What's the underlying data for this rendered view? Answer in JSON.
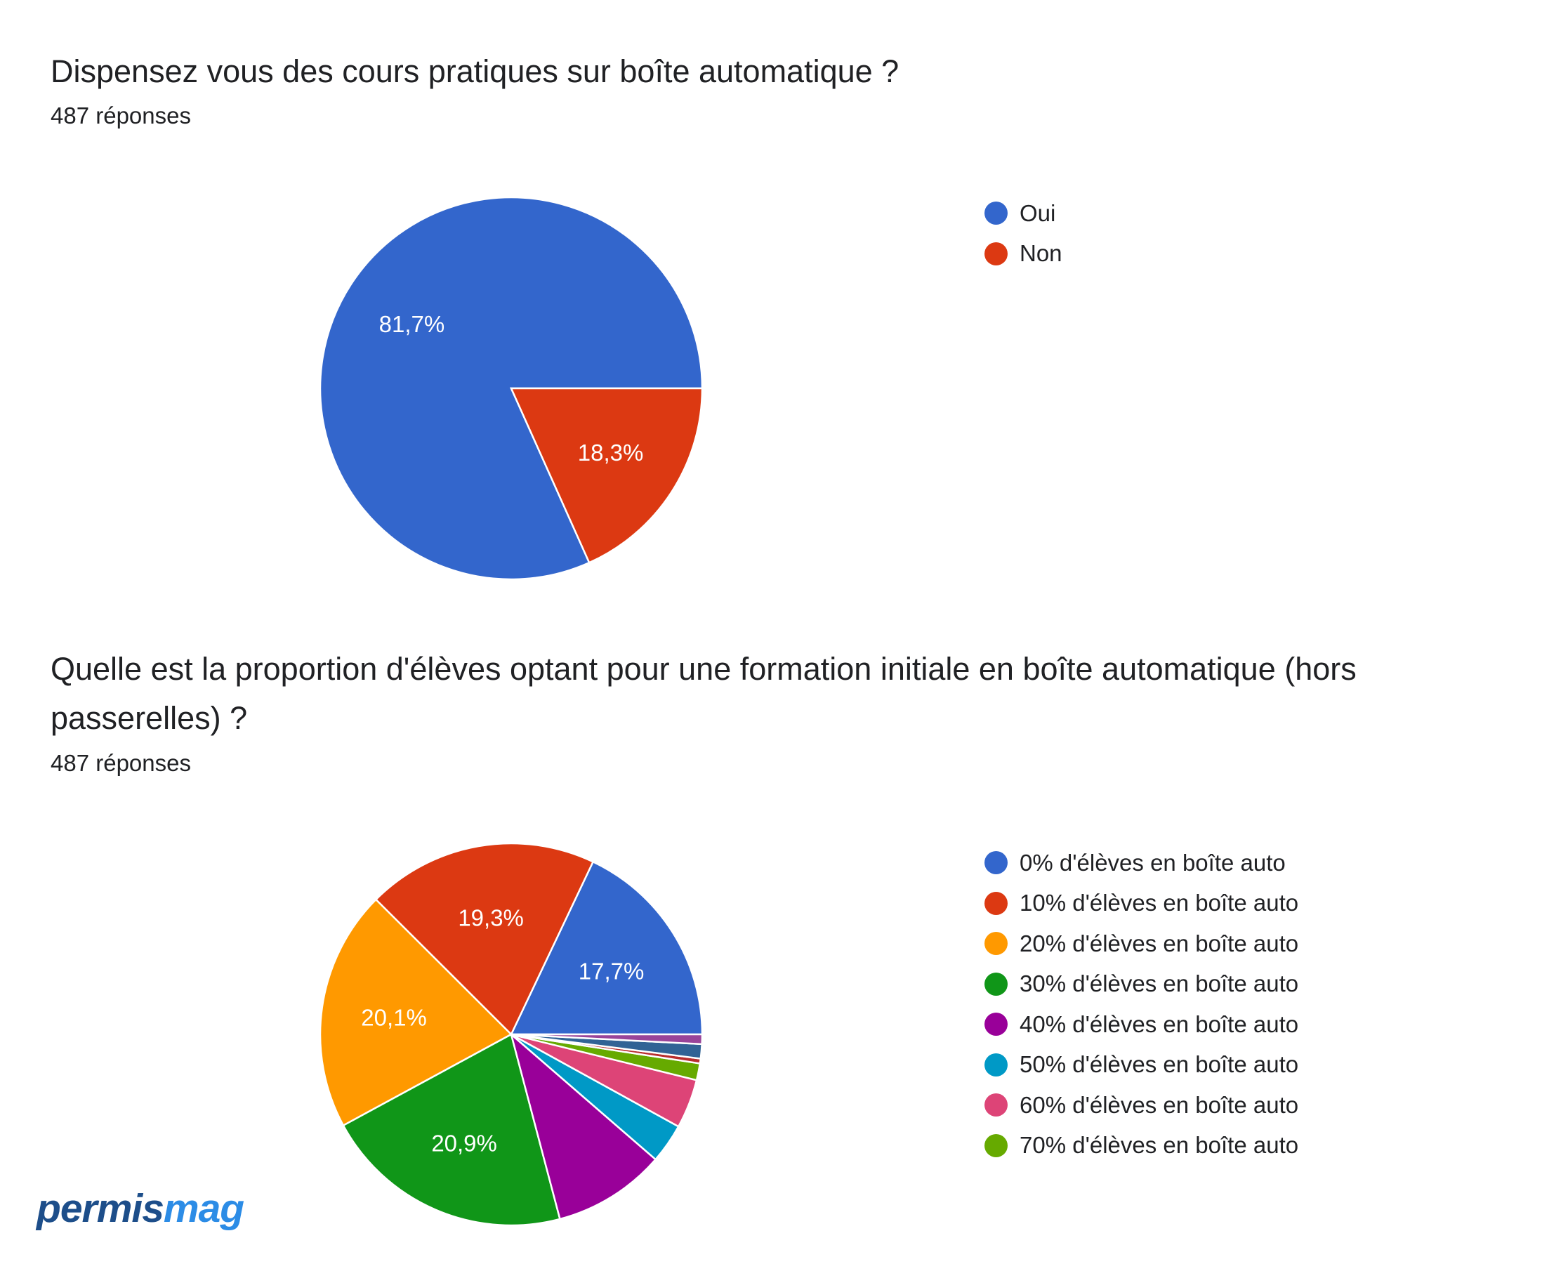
{
  "chart_data": [
    {
      "type": "pie",
      "title": "Dispensez vous des cours pratiques sur boîte automatique ?",
      "subtitle": "487 réponses",
      "categories": [
        "Oui",
        "Non"
      ],
      "values": [
        81.7,
        18.3
      ],
      "labels": [
        "81,7%",
        "18,3%"
      ],
      "colors": [
        "#3366cc",
        "#dc3912"
      ],
      "legend_position": "right"
    },
    {
      "type": "pie",
      "title": "Quelle est la proportion d'élèves optant pour une formation initiale en boîte automatique (hors passerelles) ?",
      "subtitle": "487 réponses",
      "categories": [
        "0% d'élèves en boîte auto",
        "10% d'élèves en boîte auto",
        "20% d'élèves en boîte auto",
        "30% d'élèves en boîte auto",
        "40% d'élèves en boîte auto",
        "50% d'élèves en boîte auto",
        "60% d'élèves en boîte auto",
        "70% d'élèves en boîte auto",
        "",
        "",
        ""
      ],
      "values": [
        17.7,
        19.3,
        20.1,
        20.9,
        9.4,
        3.3,
        4.1,
        1.4,
        0.4,
        1.2,
        0.8
      ],
      "labels": [
        "17,7%",
        "19,3%",
        "20,1%",
        "20,9%",
        "",
        "",
        "",
        "",
        "",
        "",
        ""
      ],
      "colors": [
        "#3366cc",
        "#dc3912",
        "#ff9900",
        "#109618",
        "#990099",
        "#0099c6",
        "#dd4477",
        "#66aa00",
        "#b82e2e",
        "#316395",
        "#994499"
      ],
      "legend_items": 8,
      "legend_position": "right"
    }
  ],
  "brand": {
    "logo_part1": "permis",
    "logo_part2": "mag"
  }
}
